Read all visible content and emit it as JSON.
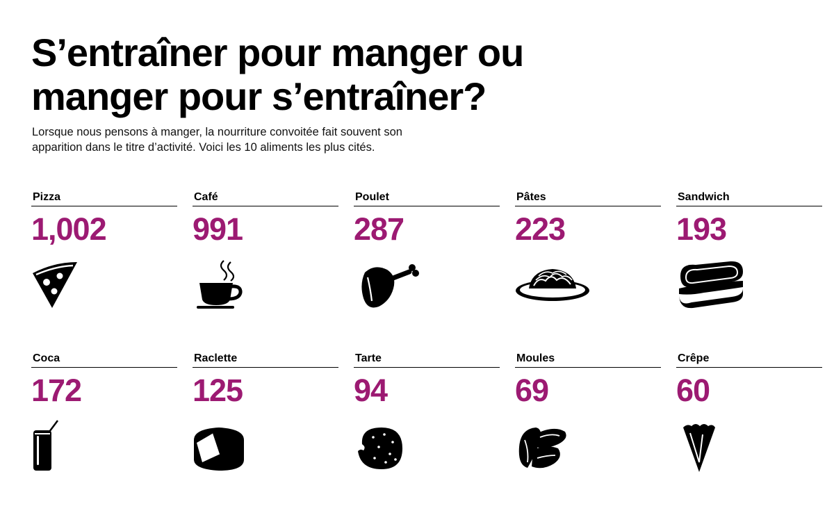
{
  "title": {
    "line1": "S’entraîner pour manger ou",
    "line2": "manger pour s’entraîner?"
  },
  "subtitle": {
    "line1": "Lorsque nous pensons à manger, la nourriture convoitée fait souvent son",
    "line2": "apparition dans le titre d’activité. Voici les 10 aliments les plus cités."
  },
  "colors": {
    "accent": "#9c1a72",
    "ink": "#000000"
  },
  "items": [
    {
      "label": "Pizza",
      "value": "1,002",
      "icon": "pizza-slice-icon"
    },
    {
      "label": "Café",
      "value": "991",
      "icon": "coffee-cup-icon"
    },
    {
      "label": "Poulet",
      "value": "287",
      "icon": "chicken-leg-icon"
    },
    {
      "label": "Pâtes",
      "value": "223",
      "icon": "pasta-plate-icon"
    },
    {
      "label": "Sandwich",
      "value": "193",
      "icon": "sandwich-icon"
    },
    {
      "label": "Coca",
      "value": "172",
      "icon": "soda-can-icon"
    },
    {
      "label": "Raclette",
      "value": "125",
      "icon": "cheese-wheel-icon"
    },
    {
      "label": "Tarte",
      "value": "94",
      "icon": "tart-icon"
    },
    {
      "label": "Moules",
      "value": "69",
      "icon": "mussels-icon"
    },
    {
      "label": "Crêpe",
      "value": "60",
      "icon": "crepe-icon"
    }
  ]
}
